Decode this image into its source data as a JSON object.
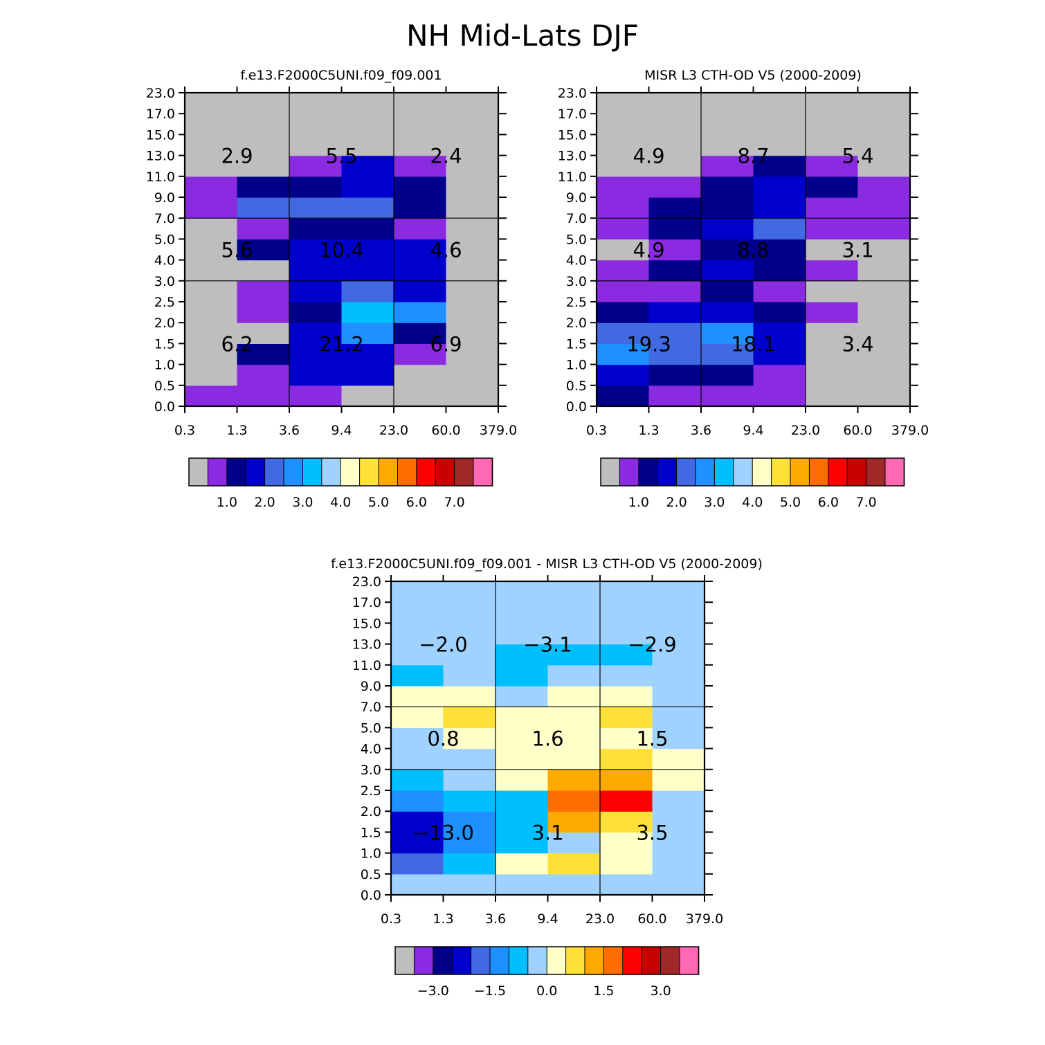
{
  "figure_title": "NH Mid-Lats DJF",
  "colors": {
    "seq_palette": [
      "#bebebe",
      "#8a2be2",
      "#00008b",
      "#0000cd",
      "#4169e1",
      "#1e90ff",
      "#00bfff",
      "#a0d2ff",
      "#ffffc8",
      "#ffe036",
      "#ffaa00",
      "#ff6e00",
      "#ff0000",
      "#c80000",
      "#a02828",
      "#ff69b4"
    ],
    "div_palette": [
      "#bebebe",
      "#8a2be2",
      "#00008b",
      "#0000cd",
      "#4169e1",
      "#1e90ff",
      "#00bfff",
      "#a0d2ff",
      "#ffffc8",
      "#ffe036",
      "#ffaa00",
      "#ff6e00",
      "#ff0000",
      "#c80000",
      "#a02828",
      "#ff69b4"
    ]
  },
  "chart_data": [
    {
      "type": "heatmap",
      "title": "f.e13.F2000C5UNI.f09_f09.001",
      "x_tick_labels": [
        "0.3",
        "1.3",
        "3.6",
        "9.4",
        "23.0",
        "60.0",
        "379.0"
      ],
      "y_tick_labels": [
        "0.0",
        "0.5",
        "1.0",
        "1.5",
        "2.0",
        "2.5",
        "3.0",
        "4.0",
        "5.0",
        "7.0",
        "9.0",
        "11.0",
        "13.0",
        "15.0",
        "17.0",
        "23.0"
      ],
      "cell_color_index_rows_bottom_to_top": [
        [
          1,
          1,
          1,
          0,
          0,
          0
        ],
        [
          0,
          1,
          3,
          3,
          0,
          0
        ],
        [
          0,
          2,
          3,
          3,
          1,
          0
        ],
        [
          0,
          0,
          3,
          5,
          2,
          0
        ],
        [
          0,
          1,
          2,
          6,
          5,
          0
        ],
        [
          0,
          1,
          3,
          4,
          3,
          0
        ],
        [
          0,
          0,
          3,
          3,
          3,
          0
        ],
        [
          0,
          2,
          3,
          3,
          3,
          0
        ],
        [
          0,
          1,
          2,
          2,
          1,
          0
        ],
        [
          1,
          4,
          4,
          4,
          2,
          0
        ],
        [
          1,
          2,
          2,
          3,
          2,
          0
        ],
        [
          0,
          0,
          1,
          3,
          1,
          0
        ],
        [
          0,
          0,
          0,
          0,
          0,
          0
        ],
        [
          0,
          0,
          0,
          0,
          0,
          0
        ],
        [
          0,
          0,
          0,
          0,
          0,
          0
        ]
      ],
      "block_totals": {
        "high": [
          "2.9",
          "5.5",
          "2.4"
        ],
        "mid": [
          "5.6",
          "10.4",
          "4.6"
        ],
        "low": [
          "6.2",
          "21.2",
          "6.9"
        ]
      },
      "colorbar": {
        "tick_labels": [
          "1.0",
          "2.0",
          "3.0",
          "4.0",
          "5.0",
          "6.0",
          "7.0"
        ]
      }
    },
    {
      "type": "heatmap",
      "title": "MISR L3 CTH-OD V5 (2000-2009)",
      "x_tick_labels": [
        "0.3",
        "1.3",
        "3.6",
        "9.4",
        "23.0",
        "60.0",
        "379.0"
      ],
      "y_tick_labels": [
        "0.0",
        "0.5",
        "1.0",
        "1.5",
        "2.0",
        "2.5",
        "3.0",
        "4.0",
        "5.0",
        "7.0",
        "9.0",
        "11.0",
        "13.0",
        "15.0",
        "17.0",
        "23.0"
      ],
      "cell_color_index_rows_bottom_to_top": [
        [
          2,
          1,
          1,
          1,
          0,
          0
        ],
        [
          3,
          2,
          2,
          1,
          0,
          0
        ],
        [
          5,
          4,
          4,
          3,
          0,
          0
        ],
        [
          4,
          4,
          5,
          3,
          0,
          0
        ],
        [
          2,
          3,
          3,
          2,
          1,
          0
        ],
        [
          1,
          1,
          2,
          1,
          0,
          0
        ],
        [
          1,
          2,
          3,
          2,
          1,
          0
        ],
        [
          0,
          1,
          2,
          2,
          0,
          0
        ],
        [
          1,
          2,
          3,
          4,
          1,
          1
        ],
        [
          1,
          2,
          2,
          3,
          1,
          1
        ],
        [
          1,
          1,
          2,
          3,
          2,
          1
        ],
        [
          0,
          0,
          1,
          2,
          1,
          0
        ],
        [
          0,
          0,
          0,
          0,
          0,
          0
        ],
        [
          0,
          0,
          0,
          0,
          0,
          0
        ],
        [
          0,
          0,
          0,
          0,
          0,
          0
        ]
      ],
      "block_totals": {
        "high": [
          "4.9",
          "8.7",
          "5.4"
        ],
        "mid": [
          "4.9",
          "8.8",
          "3.1"
        ],
        "low": [
          "19.3",
          "18.1",
          "3.4"
        ]
      },
      "colorbar": {
        "tick_labels": [
          "1.0",
          "2.0",
          "3.0",
          "4.0",
          "5.0",
          "6.0",
          "7.0"
        ]
      }
    },
    {
      "type": "heatmap",
      "title": "f.e13.F2000C5UNI.f09_f09.001 - MISR L3 CTH-OD V5 (2000-2009)",
      "x_tick_labels": [
        "0.3",
        "1.3",
        "3.6",
        "9.4",
        "23.0",
        "60.0",
        "379.0"
      ],
      "y_tick_labels": [
        "0.0",
        "0.5",
        "1.0",
        "1.5",
        "2.0",
        "2.5",
        "3.0",
        "4.0",
        "5.0",
        "7.0",
        "9.0",
        "11.0",
        "13.0",
        "15.0",
        "17.0",
        "23.0"
      ],
      "cell_color_index_rows_bottom_to_top": [
        [
          7,
          7,
          7,
          7,
          7,
          7
        ],
        [
          4,
          6,
          8,
          9,
          8,
          7
        ],
        [
          3,
          5,
          6,
          7,
          8,
          7
        ],
        [
          3,
          5,
          6,
          10,
          9,
          7
        ],
        [
          5,
          6,
          6,
          11,
          12,
          7
        ],
        [
          6,
          7,
          8,
          10,
          10,
          8
        ],
        [
          7,
          7,
          8,
          8,
          9,
          8
        ],
        [
          7,
          8,
          8,
          8,
          8,
          7
        ],
        [
          8,
          9,
          8,
          8,
          9,
          7
        ],
        [
          8,
          8,
          7,
          8,
          8,
          7
        ],
        [
          6,
          7,
          6,
          7,
          7,
          7
        ],
        [
          7,
          7,
          6,
          6,
          6,
          7
        ],
        [
          7,
          7,
          7,
          7,
          7,
          7
        ],
        [
          7,
          7,
          7,
          7,
          7,
          7
        ],
        [
          7,
          7,
          7,
          7,
          7,
          7
        ]
      ],
      "block_totals": {
        "high": [
          "-2.0",
          "-3.1",
          "-2.9"
        ],
        "mid": [
          "0.8",
          "1.6",
          "1.5"
        ],
        "low": [
          "-13.0",
          "3.1",
          "3.5"
        ]
      },
      "colorbar": {
        "tick_labels": [
          "-3.0",
          "-1.5",
          "0.0",
          "1.5",
          "3.0"
        ]
      }
    }
  ]
}
